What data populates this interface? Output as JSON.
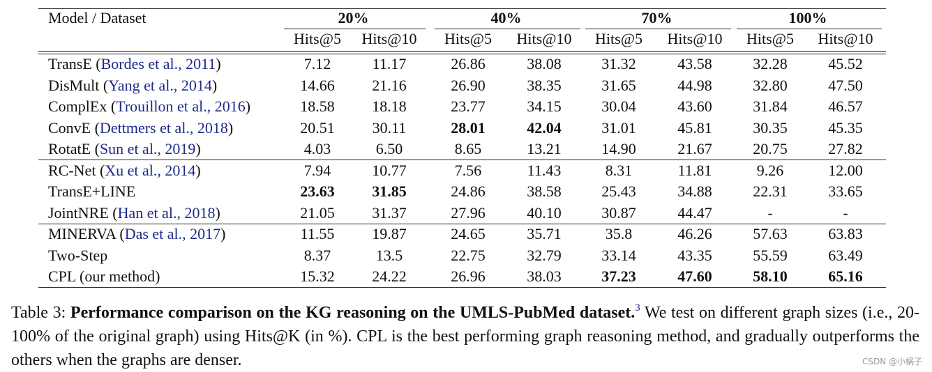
{
  "table": {
    "corner": "Model / Dataset",
    "groups_header": [
      "20%",
      "40%",
      "70%",
      "100%"
    ],
    "subheader": [
      "Hits@5",
      "Hits@10",
      "Hits@5",
      "Hits@10",
      "Hits@5",
      "Hits@10",
      "Hits@5",
      "Hits@10"
    ],
    "groups": [
      {
        "rows": [
          {
            "label": [
              {
                "text": "TransE ("
              },
              {
                "text": "Bordes et al., 2011",
                "cite": true
              },
              {
                "text": ")"
              }
            ],
            "cells": [
              "7.12",
              "11.17",
              "26.86",
              "38.08",
              "31.32",
              "43.58",
              "32.28",
              "45.52"
            ],
            "bold": []
          },
          {
            "label": [
              {
                "text": "DisMult ("
              },
              {
                "text": "Yang et al., 2014",
                "cite": true
              },
              {
                "text": ")"
              }
            ],
            "cells": [
              "14.66",
              "21.16",
              "26.90",
              "38.35",
              "31.65",
              "44.98",
              "32.80",
              "47.50"
            ],
            "bold": []
          },
          {
            "label": [
              {
                "text": "ComplEx ("
              },
              {
                "text": "Trouillon et al., 2016",
                "cite": true
              },
              {
                "text": ")"
              }
            ],
            "cells": [
              "18.58",
              "18.18",
              "23.77",
              "34.15",
              "30.04",
              "43.60",
              "31.84",
              "46.57"
            ],
            "bold": []
          },
          {
            "label": [
              {
                "text": "ConvE ("
              },
              {
                "text": "Dettmers et al., 2018",
                "cite": true
              },
              {
                "text": ")"
              }
            ],
            "cells": [
              "20.51",
              "30.11",
              "28.01",
              "42.04",
              "31.01",
              "45.81",
              "30.35",
              "45.35"
            ],
            "bold": [
              2,
              3
            ]
          },
          {
            "label": [
              {
                "text": "RotatE ("
              },
              {
                "text": "Sun et al., 2019",
                "cite": true
              },
              {
                "text": ")"
              }
            ],
            "cells": [
              "4.03",
              "6.50",
              "8.65",
              "13.21",
              "14.90",
              "21.67",
              "20.75",
              "27.82"
            ],
            "bold": []
          }
        ]
      },
      {
        "rows": [
          {
            "label": [
              {
                "text": "RC-Net ("
              },
              {
                "text": "Xu et al., 2014",
                "cite": true
              },
              {
                "text": ")"
              }
            ],
            "cells": [
              "7.94",
              "10.77",
              "7.56",
              "11.43",
              "8.31",
              "11.81",
              "9.26",
              "12.00"
            ],
            "bold": []
          },
          {
            "label": [
              {
                "text": "TransE+LINE"
              }
            ],
            "cells": [
              "23.63",
              "31.85",
              "24.86",
              "38.58",
              "25.43",
              "34.88",
              "22.31",
              "33.65"
            ],
            "bold": [
              0,
              1
            ]
          },
          {
            "label": [
              {
                "text": "JointNRE ("
              },
              {
                "text": "Han et al., 2018",
                "cite": true
              },
              {
                "text": ")"
              }
            ],
            "cells": [
              "21.05",
              "31.37",
              "27.96",
              "40.10",
              "30.87",
              "44.47",
              "-",
              "-"
            ],
            "bold": []
          }
        ]
      },
      {
        "rows": [
          {
            "label": [
              {
                "text": "MINERVA ("
              },
              {
                "text": "Das et al., 2017",
                "cite": true
              },
              {
                "text": ")"
              }
            ],
            "cells": [
              "11.55",
              "19.87",
              "24.65",
              "35.71",
              "35.8",
              "46.26",
              "57.63",
              "63.83"
            ],
            "bold": []
          },
          {
            "label": [
              {
                "text": "Two-Step"
              }
            ],
            "cells": [
              "8.37",
              "13.5",
              "22.75",
              "32.79",
              "33.14",
              "43.35",
              "55.59",
              "63.49"
            ],
            "bold": []
          },
          {
            "label": [
              {
                "text": "CPL (our method)"
              }
            ],
            "cells": [
              "15.32",
              "24.22",
              "26.96",
              "38.03",
              "37.23",
              "47.60",
              "58.10",
              "65.16"
            ],
            "bold": [
              4,
              5,
              6,
              7
            ]
          }
        ]
      }
    ]
  },
  "caption": {
    "lead": "Table 3: ",
    "bold": "Performance comparison on the KG reasoning on the UMLS-PubMed dataset.",
    "footnote": "3",
    "body": " We test on different graph sizes (i.e., 20-100% of the original graph) using Hits@K (in %). CPL is the best performing graph reasoning method, and gradually outperforms the others when the graphs are denser."
  },
  "watermark": "CSDN @小蜗子"
}
